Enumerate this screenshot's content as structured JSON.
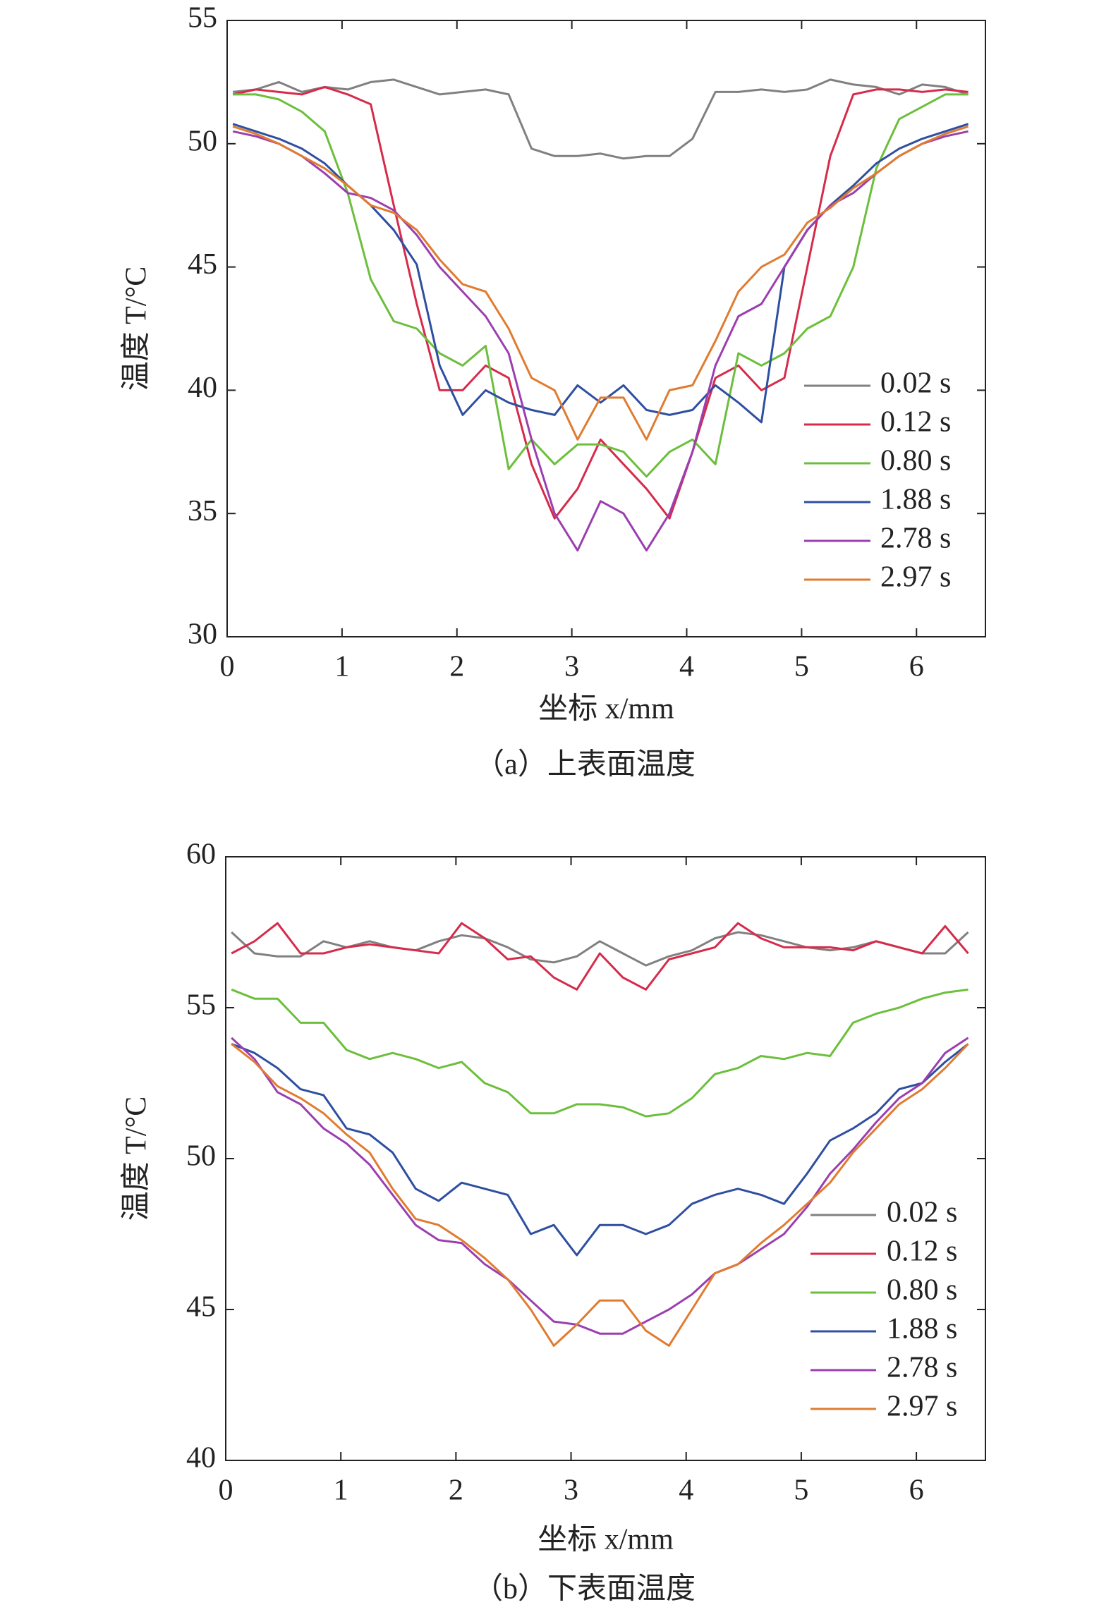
{
  "chart_data": [
    {
      "type": "line",
      "xlabel": "坐标 x/mm",
      "ylabel": "温度 T/°C",
      "caption": "（a）上表面温度",
      "xlim": [
        0,
        6.6
      ],
      "ylim": [
        30,
        55
      ],
      "xticks": [
        0,
        1,
        2,
        3,
        4,
        5,
        6
      ],
      "yticks": [
        30,
        35,
        40,
        45,
        50,
        55
      ],
      "x": [
        0.05,
        0.25,
        0.45,
        0.65,
        0.85,
        1.05,
        1.25,
        1.45,
        1.65,
        1.85,
        2.05,
        2.25,
        2.45,
        2.65,
        2.85,
        3.05,
        3.25,
        3.45,
        3.65,
        3.85,
        4.05,
        4.25,
        4.45,
        4.65,
        4.85,
        5.05,
        5.25,
        5.45,
        5.65,
        5.85,
        6.05,
        6.25,
        6.45
      ],
      "series": [
        {
          "name": "0.02 s",
          "color": "#808080",
          "values": [
            52.1,
            52.2,
            52.5,
            52.1,
            52.3,
            52.2,
            52.5,
            52.6,
            52.3,
            52.0,
            52.1,
            52.2,
            52.0,
            49.8,
            49.5,
            49.5,
            49.6,
            49.4,
            49.5,
            49.5,
            50.2,
            52.1,
            52.1,
            52.2,
            52.1,
            52.2,
            52.6,
            52.4,
            52.3,
            52.0,
            52.4,
            52.3,
            52.0
          ]
        },
        {
          "name": "0.12 s",
          "color": "#d62b4a",
          "values": [
            52.0,
            52.2,
            52.1,
            52.0,
            52.3,
            52.0,
            51.6,
            47.5,
            43.5,
            40.0,
            40.0,
            41.0,
            40.5,
            37.0,
            34.8,
            36.0,
            38.0,
            37.0,
            36.0,
            34.8,
            37.5,
            40.5,
            41.0,
            40.0,
            40.5,
            45.0,
            49.5,
            52.0,
            52.2,
            52.2,
            52.1,
            52.2,
            52.1
          ]
        },
        {
          "name": "0.80 s",
          "color": "#6cbf3c",
          "values": [
            52.0,
            52.0,
            51.8,
            51.3,
            50.5,
            48.0,
            44.5,
            42.8,
            42.5,
            41.5,
            41.0,
            41.8,
            36.8,
            38.0,
            37.0,
            37.8,
            37.8,
            37.5,
            36.5,
            37.5,
            38.0,
            37.0,
            41.5,
            41.0,
            41.5,
            42.5,
            43.0,
            45.0,
            49.0,
            51.0,
            51.5,
            52.0,
            52.0
          ]
        },
        {
          "name": "1.88 s",
          "color": "#2e4fa0",
          "values": [
            50.8,
            50.5,
            50.2,
            49.8,
            49.2,
            48.3,
            47.5,
            46.5,
            45.1,
            41.0,
            39.0,
            40.0,
            39.5,
            39.2,
            39.0,
            40.2,
            39.5,
            40.2,
            39.2,
            39.0,
            39.2,
            40.2,
            39.5,
            38.7,
            45.0,
            46.5,
            47.5,
            48.3,
            49.2,
            49.8,
            50.2,
            50.5,
            50.8
          ]
        },
        {
          "name": "2.78 s",
          "color": "#9b3fb0",
          "values": [
            50.5,
            50.3,
            50.0,
            49.5,
            48.8,
            48.0,
            47.8,
            47.3,
            46.3,
            45.0,
            44.0,
            43.0,
            41.5,
            38.0,
            35.0,
            33.5,
            35.5,
            35.0,
            33.5,
            35.0,
            37.5,
            41.0,
            43.0,
            43.5,
            45.0,
            46.5,
            47.5,
            48.0,
            48.8,
            49.5,
            50.0,
            50.3,
            50.5
          ]
        },
        {
          "name": "2.97 s",
          "color": "#e07b30",
          "values": [
            50.7,
            50.4,
            50.0,
            49.5,
            49.0,
            48.3,
            47.5,
            47.2,
            46.5,
            45.3,
            44.3,
            44.0,
            42.5,
            40.5,
            40.0,
            38.0,
            39.7,
            39.7,
            38.0,
            40.0,
            40.2,
            42.0,
            44.0,
            45.0,
            45.5,
            46.8,
            47.4,
            48.2,
            48.8,
            49.5,
            50.0,
            50.4,
            50.7
          ]
        }
      ]
    },
    {
      "type": "line",
      "xlabel": "坐标 x/mm",
      "ylabel": "温度 T/°C",
      "caption": "（b）下表面温度",
      "xlim": [
        0,
        6.6
      ],
      "ylim": [
        40,
        60
      ],
      "xticks": [
        0,
        1,
        2,
        3,
        4,
        5,
        6
      ],
      "yticks": [
        40,
        45,
        50,
        55,
        60
      ],
      "x": [
        0.05,
        0.25,
        0.45,
        0.65,
        0.85,
        1.05,
        1.25,
        1.45,
        1.65,
        1.85,
        2.05,
        2.25,
        2.45,
        2.65,
        2.85,
        3.05,
        3.25,
        3.45,
        3.65,
        3.85,
        4.05,
        4.25,
        4.45,
        4.65,
        4.85,
        5.05,
        5.25,
        5.45,
        5.65,
        5.85,
        6.05,
        6.25,
        6.45
      ],
      "series": [
        {
          "name": "0.02 s",
          "color": "#808080",
          "values": [
            57.5,
            56.8,
            56.7,
            56.7,
            57.2,
            57.0,
            57.2,
            57.0,
            56.9,
            57.2,
            57.4,
            57.3,
            57.0,
            56.6,
            56.5,
            56.7,
            57.2,
            56.8,
            56.4,
            56.7,
            56.9,
            57.3,
            57.5,
            57.4,
            57.2,
            57.0,
            56.9,
            57.0,
            57.2,
            57.0,
            56.8,
            56.8,
            57.5
          ]
        },
        {
          "name": "0.12 s",
          "color": "#d62b4a",
          "values": [
            56.8,
            57.2,
            57.8,
            56.8,
            56.8,
            57.0,
            57.1,
            57.0,
            56.9,
            56.8,
            57.8,
            57.3,
            56.6,
            56.7,
            56.0,
            55.6,
            56.8,
            56.0,
            55.6,
            56.6,
            56.8,
            57.0,
            57.8,
            57.3,
            57.0,
            57.0,
            57.0,
            56.9,
            57.2,
            57.0,
            56.8,
            57.7,
            56.8
          ]
        },
        {
          "name": "0.80 s",
          "color": "#6cbf3c",
          "values": [
            55.6,
            55.3,
            55.3,
            54.5,
            54.5,
            53.6,
            53.3,
            53.5,
            53.3,
            53.0,
            53.2,
            52.5,
            52.2,
            51.5,
            51.5,
            51.8,
            51.8,
            51.7,
            51.4,
            51.5,
            52.0,
            52.8,
            53.0,
            53.4,
            53.3,
            53.5,
            53.4,
            54.5,
            54.8,
            55.0,
            55.3,
            55.5,
            55.6
          ]
        },
        {
          "name": "1.88 s",
          "color": "#2e4fa0",
          "values": [
            53.8,
            53.5,
            53.0,
            52.3,
            52.1,
            51.0,
            50.8,
            50.2,
            49.0,
            48.6,
            49.2,
            49.0,
            48.8,
            47.5,
            47.8,
            46.8,
            47.8,
            47.8,
            47.5,
            47.8,
            48.5,
            48.8,
            49.0,
            48.8,
            48.5,
            49.5,
            50.6,
            51.0,
            51.5,
            52.3,
            52.5,
            53.2,
            53.8
          ]
        },
        {
          "name": "2.78 s",
          "color": "#9b3fb0",
          "values": [
            54.0,
            53.3,
            52.2,
            51.8,
            51.0,
            50.5,
            49.8,
            48.8,
            47.8,
            47.3,
            47.2,
            46.5,
            46.0,
            45.3,
            44.6,
            44.5,
            44.2,
            44.2,
            44.6,
            45.0,
            45.5,
            46.2,
            46.5,
            47.0,
            47.5,
            48.4,
            49.5,
            50.3,
            51.2,
            52.0,
            52.5,
            53.5,
            54.0
          ]
        },
        {
          "name": "2.97 s",
          "color": "#e07b30",
          "values": [
            53.8,
            53.2,
            52.4,
            52.0,
            51.5,
            50.8,
            50.2,
            49.0,
            48.0,
            47.8,
            47.3,
            46.7,
            46.0,
            45.0,
            43.8,
            44.5,
            45.3,
            45.3,
            44.3,
            43.8,
            45.0,
            46.2,
            46.5,
            47.2,
            47.8,
            48.5,
            49.2,
            50.2,
            51.0,
            51.8,
            52.3,
            53.0,
            53.8
          ]
        }
      ]
    }
  ]
}
